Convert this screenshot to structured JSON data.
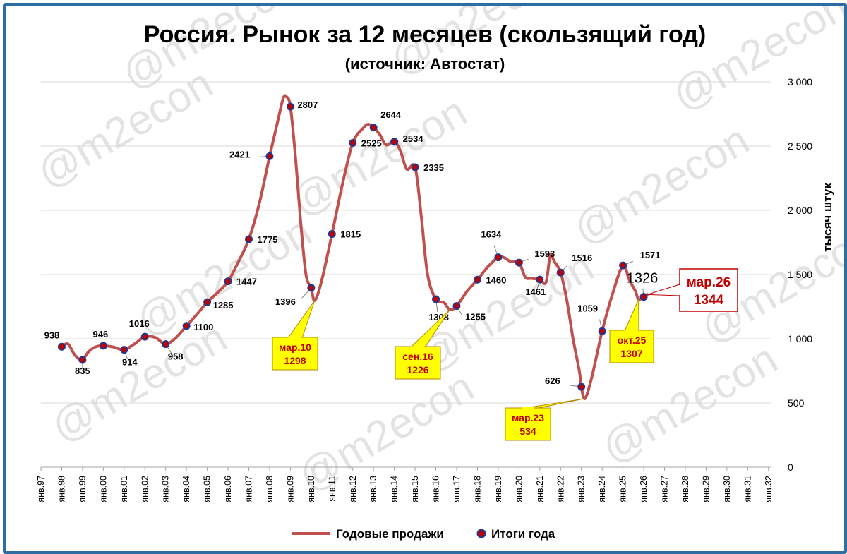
{
  "chart_data": {
    "type": "line",
    "title": "Россия. Рынок за 12 месяцев (скользящий год)",
    "subtitle": "(источник: Автостат)",
    "ylabel": "тысяч штук",
    "ylim": [
      0,
      3000
    ],
    "yticks": [
      0,
      500,
      1000,
      1500,
      2000,
      2500,
      3000
    ],
    "ytick_labels": [
      "0",
      "500",
      "1 000",
      "1 500",
      "2 000",
      "2 500",
      "3 000"
    ],
    "x_categories": [
      "янв.97",
      "янв.98",
      "янв.99",
      "янв.00",
      "янв.01",
      "янв.02",
      "янв.03",
      "янв.04",
      "янв.05",
      "янв.06",
      "янв.07",
      "янв.08",
      "янв.09",
      "янв.10",
      "янв.11",
      "янв.12",
      "янв.13",
      "янв.14",
      "янв.15",
      "янв.16",
      "янв.17",
      "янв.18",
      "янв.19",
      "янв.20",
      "янв.21",
      "янв.22",
      "янв.23",
      "янв.24",
      "янв.25",
      "янв.26",
      "янв.27",
      "янв.28",
      "янв.29",
      "янв.30",
      "янв.31",
      "янв.32"
    ],
    "grid": "horizontal",
    "legend": "bottom",
    "series": [
      {
        "name": "Годовые продажи",
        "color": "#c0504d",
        "points": [
          [
            1997.0,
            938
          ],
          [
            1997.3,
            960
          ],
          [
            1997.6,
            880
          ],
          [
            1997.85,
            840
          ],
          [
            1998.0,
            835
          ],
          [
            1998.3,
            900
          ],
          [
            1998.6,
            935
          ],
          [
            1999.0,
            946
          ],
          [
            1999.5,
            935
          ],
          [
            2000.0,
            914
          ],
          [
            2000.5,
            960
          ],
          [
            2001.0,
            1016
          ],
          [
            2001.5,
            1010
          ],
          [
            2002.0,
            958
          ],
          [
            2002.5,
            1010
          ],
          [
            2003.0,
            1100
          ],
          [
            2003.5,
            1190
          ],
          [
            2004.0,
            1285
          ],
          [
            2004.5,
            1360
          ],
          [
            2005.0,
            1447
          ],
          [
            2005.5,
            1600
          ],
          [
            2006.0,
            1775
          ],
          [
            2006.5,
            2050
          ],
          [
            2007.0,
            2421
          ],
          [
            2007.4,
            2700
          ],
          [
            2007.65,
            2870
          ],
          [
            2007.8,
            2885
          ],
          [
            2008.0,
            2807
          ],
          [
            2008.25,
            2400
          ],
          [
            2008.5,
            1900
          ],
          [
            2008.75,
            1500
          ],
          [
            2009.0,
            1396
          ],
          [
            2009.17,
            1298
          ],
          [
            2009.5,
            1450
          ],
          [
            2010.0,
            1815
          ],
          [
            2010.5,
            2200
          ],
          [
            2011.0,
            2525
          ],
          [
            2011.5,
            2640
          ],
          [
            2011.75,
            2670
          ],
          [
            2012.0,
            2644
          ],
          [
            2012.3,
            2590
          ],
          [
            2012.6,
            2510
          ],
          [
            2013.0,
            2534
          ],
          [
            2013.3,
            2460
          ],
          [
            2013.6,
            2320
          ],
          [
            2014.0,
            2335
          ],
          [
            2014.3,
            1950
          ],
          [
            2014.6,
            1500
          ],
          [
            2015.0,
            1308
          ],
          [
            2015.4,
            1280
          ],
          [
            2015.67,
            1226
          ],
          [
            2016.0,
            1255
          ],
          [
            2016.5,
            1370
          ],
          [
            2017.0,
            1460
          ],
          [
            2017.5,
            1560
          ],
          [
            2018.0,
            1634
          ],
          [
            2018.3,
            1630
          ],
          [
            2018.6,
            1600
          ],
          [
            2019.0,
            1593
          ],
          [
            2019.3,
            1480
          ],
          [
            2019.6,
            1470
          ],
          [
            2020.0,
            1461
          ],
          [
            2020.3,
            1440
          ],
          [
            2020.5,
            1650
          ],
          [
            2020.7,
            1600
          ],
          [
            2021.0,
            1516
          ],
          [
            2021.3,
            1300
          ],
          [
            2021.6,
            1000
          ],
          [
            2021.9,
            750
          ],
          [
            2022.0,
            626
          ],
          [
            2022.17,
            534
          ],
          [
            2022.5,
            700
          ],
          [
            2023.0,
            1059
          ],
          [
            2023.5,
            1350
          ],
          [
            2024.0,
            1571
          ],
          [
            2024.3,
            1460
          ],
          [
            2024.6,
            1370
          ],
          [
            2024.75,
            1307
          ],
          [
            2025.0,
            1326
          ],
          [
            2025.17,
            1344
          ]
        ]
      },
      {
        "name": "Итоги года",
        "marker": "circle",
        "points": [
          {
            "x": 1997.0,
            "y": 938,
            "label": "938"
          },
          {
            "x": 1998.0,
            "y": 835,
            "label": "835"
          },
          {
            "x": 1999.0,
            "y": 946,
            "label": "946"
          },
          {
            "x": 2000.0,
            "y": 914,
            "label": "914"
          },
          {
            "x": 2001.0,
            "y": 1016,
            "label": "1016"
          },
          {
            "x": 2002.0,
            "y": 958,
            "label": "958"
          },
          {
            "x": 2003.0,
            "y": 1100,
            "label": "1100"
          },
          {
            "x": 2004.0,
            "y": 1285,
            "label": "1285"
          },
          {
            "x": 2005.0,
            "y": 1447,
            "label": "1447"
          },
          {
            "x": 2006.0,
            "y": 1775,
            "label": "1775"
          },
          {
            "x": 2007.0,
            "y": 2421,
            "label": "2421"
          },
          {
            "x": 2008.0,
            "y": 2807,
            "label": "2807"
          },
          {
            "x": 2009.0,
            "y": 1396,
            "label": "1396"
          },
          {
            "x": 2010.0,
            "y": 1815,
            "label": "1815"
          },
          {
            "x": 2011.0,
            "y": 2525,
            "label": "2525"
          },
          {
            "x": 2012.0,
            "y": 2644,
            "label": "2644"
          },
          {
            "x": 2013.0,
            "y": 2534,
            "label": "2534"
          },
          {
            "x": 2014.0,
            "y": 2335,
            "label": "2335"
          },
          {
            "x": 2015.0,
            "y": 1308,
            "label": "1308"
          },
          {
            "x": 2016.0,
            "y": 1255,
            "label": "1255"
          },
          {
            "x": 2017.0,
            "y": 1460,
            "label": "1460"
          },
          {
            "x": 2018.0,
            "y": 1634,
            "label": "1634"
          },
          {
            "x": 2019.0,
            "y": 1593,
            "label": "1593"
          },
          {
            "x": 2020.0,
            "y": 1461,
            "label": "1461"
          },
          {
            "x": 2021.0,
            "y": 1516,
            "label": "1516"
          },
          {
            "x": 2022.0,
            "y": 626,
            "label": "626"
          },
          {
            "x": 2023.0,
            "y": 1059,
            "label": "1059"
          },
          {
            "x": 2024.0,
            "y": 1571,
            "label": "1571"
          },
          {
            "x": 2025.0,
            "y": 1326,
            "label": "1326"
          }
        ]
      }
    ],
    "annotations": [
      {
        "date": "мар.10",
        "value": "1298",
        "x": 2009.17,
        "y": 1298,
        "style": "yellow"
      },
      {
        "date": "сен.16",
        "value": "1226",
        "x": 2015.67,
        "y": 1226,
        "style": "yellow"
      },
      {
        "date": "мар.23",
        "value": "534",
        "x": 2022.17,
        "y": 534,
        "style": "yellow"
      },
      {
        "date": "окт.25",
        "value": "1307",
        "x": 2024.75,
        "y": 1307,
        "style": "yellow"
      },
      {
        "date": "мар.26",
        "value": "1344",
        "x": 2025.17,
        "y": 1344,
        "style": "red-box"
      }
    ],
    "watermark": "@m2econ"
  }
}
